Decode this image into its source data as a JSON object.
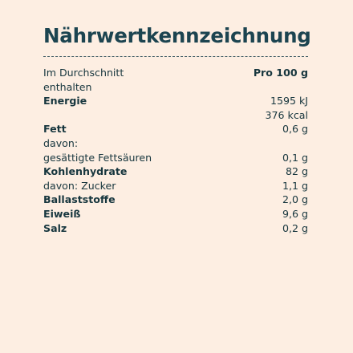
{
  "title": "Nährwertkennzeichnung",
  "header": {
    "label_line1": "Im Durchschnitt",
    "label_line2": "enthalten",
    "column": "Pro 100 g"
  },
  "rows": [
    {
      "label": "Energie",
      "value": "1595 kJ",
      "bold": true
    },
    {
      "label": "",
      "value": "376 kcal",
      "bold": false
    },
    {
      "label": "Fett",
      "value": "0,6 g",
      "bold": true
    },
    {
      "label": "davon:",
      "value": "",
      "bold": false
    },
    {
      "label": "gesättigte Fettsäuren",
      "value": "0,1 g",
      "bold": false
    },
    {
      "label": "Kohlenhydrate",
      "value": "82 g",
      "bold": true
    },
    {
      "label": "davon: Zucker",
      "value": "1,1 g",
      "bold": false
    },
    {
      "label": "Ballaststoffe",
      "value": "2,0 g",
      "bold": true
    },
    {
      "label": "Eiweiß",
      "value": "9,6 g",
      "bold": true
    },
    {
      "label": "Salz",
      "value": "0,2 g",
      "bold": true
    }
  ],
  "colors": {
    "background": "#fdeee2",
    "title": "#1c4450",
    "text": "#17363e"
  }
}
